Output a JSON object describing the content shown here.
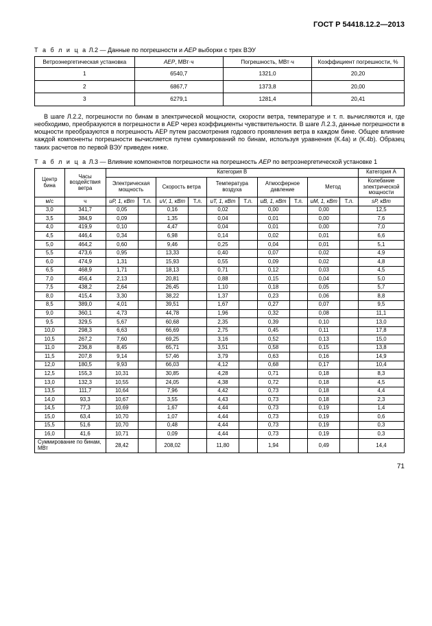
{
  "doc_id": "ГОСТ Р 54418.12.2—2013",
  "page_number": "71",
  "table_l2": {
    "caption_prefix": "Т а б л и ц а",
    "caption_num": "Л.2",
    "caption_rest_a": " — Данные по погрешности и ",
    "caption_it": "AEP",
    "caption_rest_b": " выборки с трех ВЭУ",
    "head": {
      "c1": "Ветроэнергетическая установка",
      "c2_a": "AEP",
      "c2_b": ", МВт·ч",
      "c3": "Погрешность, МВт·ч",
      "c4": "Коэффициент погрешности, %"
    },
    "rows": [
      [
        "1",
        "6540,7",
        "1321,0",
        "20,20"
      ],
      [
        "2",
        "6867,7",
        "1373,8",
        "20,00"
      ],
      [
        "3",
        "6279,1",
        "1281,4",
        "20,41"
      ]
    ]
  },
  "para": "В шаге Л.2.2, погрешности по бинам в электрической мощности, скорости ветра, температуре и т. п. вычисляются и, где необходимо, преобразуются в погрешности в AEP через коэффициенты чувствительности. В шаге Л.2.3, данные погрешности в мощности преобразуются в погрешность AEP путем рассмотрения годового проявления ветра в каждом бине. Общее влияние каждой компоненты погрешности вычисляется путем суммирований по бинам, используя уравнения (К.4a) и (К.4b). Образец таких расчетов по первой ВЭУ приведен ниже.",
  "table_l3": {
    "caption_prefix": "Т а б л и ц а",
    "caption_num": "Л.3",
    "caption_rest_a": " — Влияние компонентов погрешности на погрешность ",
    "caption_it": "AEP",
    "caption_rest_b": " по ветроэнергетической установке 1",
    "superhead": {
      "catB": "Категория B",
      "catA": "Категория A"
    },
    "head": {
      "c1": "Центр бина",
      "c2": "Часы воздействия ветра",
      "c3": "Электрическая мощность",
      "c4": "Скорость ветра",
      "c5": "Температура воздуха",
      "c6": "Атмосферное давление",
      "c7": "Метод",
      "c8": "Колебание электрической мощности"
    },
    "sub": {
      "c1": "м/с",
      "c2": "ч",
      "c3a": "uP, 1, кВт",
      "c3b": "Т.л.",
      "c4a": "uV, 1, кВт",
      "c4b": "Т.л.",
      "c5a": "uT, 1, кВт",
      "c5b": "Т.л.",
      "c6a": "uB, 1, кВт",
      "c6b": "Т.л.",
      "c7a": "uM, 1, кВт",
      "c7b": "Т.л.",
      "c8": "sP, кВт"
    },
    "rows": [
      [
        "3,0",
        "341,7",
        "0,05",
        "",
        "0,16",
        "",
        "0,02",
        "",
        "0,00",
        "",
        "0,00",
        "",
        "12,5"
      ],
      [
        "3,5",
        "384,9",
        "0,09",
        "",
        "1,35",
        "",
        "0,04",
        "",
        "0,01",
        "",
        "0,00",
        "",
        "7,6"
      ],
      [
        "4,0",
        "419,9",
        "0,10",
        "",
        "4,47",
        "",
        "0,04",
        "",
        "0,01",
        "",
        "0,00",
        "",
        "7,0"
      ],
      [
        "4,5",
        "446,4",
        "0,34",
        "",
        "6,98",
        "",
        "0,14",
        "",
        "0,02",
        "",
        "0,01",
        "",
        "6,6"
      ],
      [
        "5,0",
        "464,2",
        "0,60",
        "",
        "9,46",
        "",
        "0,25",
        "",
        "0,04",
        "",
        "0,01",
        "",
        "5,1"
      ],
      [
        "5,5",
        "473,6",
        "0,95",
        "",
        "13,33",
        "",
        "0,40",
        "",
        "0,07",
        "",
        "0,02",
        "",
        "4,9"
      ],
      [
        "6,0",
        "474,9",
        "1,31",
        "",
        "15,93",
        "",
        "0,55",
        "",
        "0,09",
        "",
        "0,02",
        "",
        "4,8"
      ],
      [
        "6,5",
        "468,9",
        "1,71",
        "",
        "18,13",
        "",
        "0,71",
        "",
        "0,12",
        "",
        "0,03",
        "",
        "4,5"
      ],
      [
        "7,0",
        "456,4",
        "2,13",
        "",
        "20,81",
        "",
        "0,88",
        "",
        "0,15",
        "",
        "0,04",
        "",
        "5,0"
      ],
      [
        "7,5",
        "438,2",
        "2,64",
        "",
        "26,45",
        "",
        "1,10",
        "",
        "0,18",
        "",
        "0,05",
        "",
        "5,7"
      ],
      [
        "8,0",
        "415,4",
        "3,30",
        "",
        "38,22",
        "",
        "1,37",
        "",
        "0,23",
        "",
        "0,06",
        "",
        "8,8"
      ],
      [
        "8,5",
        "389,0",
        "4,01",
        "",
        "39,51",
        "",
        "1,67",
        "",
        "0,27",
        "",
        "0,07",
        "",
        "9,5"
      ],
      [
        "9,0",
        "360,1",
        "4,73",
        "",
        "44,78",
        "",
        "1,96",
        "",
        "0,32",
        "",
        "0,08",
        "",
        "11,1"
      ],
      [
        "9,5",
        "329,5",
        "5,67",
        "",
        "60,68",
        "",
        "2,35",
        "",
        "0,39",
        "",
        "0,10",
        "",
        "13,0"
      ],
      [
        "10,0",
        "298,3",
        "6,63",
        "",
        "66,69",
        "",
        "2,75",
        "",
        "0,45",
        "",
        "0,11",
        "",
        "17,8"
      ],
      [
        "10,5",
        "267,2",
        "7,60",
        "",
        "69,25",
        "",
        "3,16",
        "",
        "0,52",
        "",
        "0,13",
        "",
        "15,0"
      ],
      [
        "11,0",
        "236,8",
        "8,45",
        "",
        "65,71",
        "",
        "3,51",
        "",
        "0,58",
        "",
        "0,15",
        "",
        "13,8"
      ],
      [
        "11,5",
        "207,8",
        "9,14",
        "",
        "57,46",
        "",
        "3,79",
        "",
        "0,63",
        "",
        "0,16",
        "",
        "14,9"
      ],
      [
        "12,0",
        "180,5",
        "9,93",
        "",
        "66,03",
        "",
        "4,12",
        "",
        "0,68",
        "",
        "0,17",
        "",
        "10,4"
      ],
      [
        "12,5",
        "155,3",
        "10,31",
        "",
        "30,85",
        "",
        "4,28",
        "",
        "0,71",
        "",
        "0,18",
        "",
        "8,3"
      ],
      [
        "13,0",
        "132,3",
        "10,55",
        "",
        "24,05",
        "",
        "4,38",
        "",
        "0,72",
        "",
        "0,18",
        "",
        "4,5"
      ],
      [
        "13,5",
        "111,7",
        "10,64",
        "",
        "7,96",
        "",
        "4,42",
        "",
        "0,73",
        "",
        "0,18",
        "",
        "4,4"
      ],
      [
        "14,0",
        "93,3",
        "10,67",
        "",
        "3,55",
        "",
        "4,43",
        "",
        "0,73",
        "",
        "0,18",
        "",
        "2,3"
      ],
      [
        "14,5",
        "77,3",
        "10,69",
        "",
        "1,67",
        "",
        "4,44",
        "",
        "0,73",
        "",
        "0,19",
        "",
        "1,4"
      ],
      [
        "15,0",
        "63,4",
        "10,70",
        "",
        "1,07",
        "",
        "4,44",
        "",
        "0,73",
        "",
        "0,19",
        "",
        "0,6"
      ],
      [
        "15,5",
        "51,6",
        "10,70",
        "",
        "0,48",
        "",
        "4,44",
        "",
        "0,73",
        "",
        "0,19",
        "",
        "0,3"
      ],
      [
        "16,0",
        "41,6",
        "10,71",
        "",
        "0,09",
        "",
        "4,44",
        "",
        "0,73",
        "",
        "0,19",
        "",
        "0,3"
      ]
    ],
    "sum_label": "Суммирование по бинам, МВт",
    "sum_row": [
      "28,42",
      "",
      "208,02",
      "",
      "11,80",
      "",
      "1,94",
      "",
      "0,49",
      "",
      "14,4"
    ]
  }
}
